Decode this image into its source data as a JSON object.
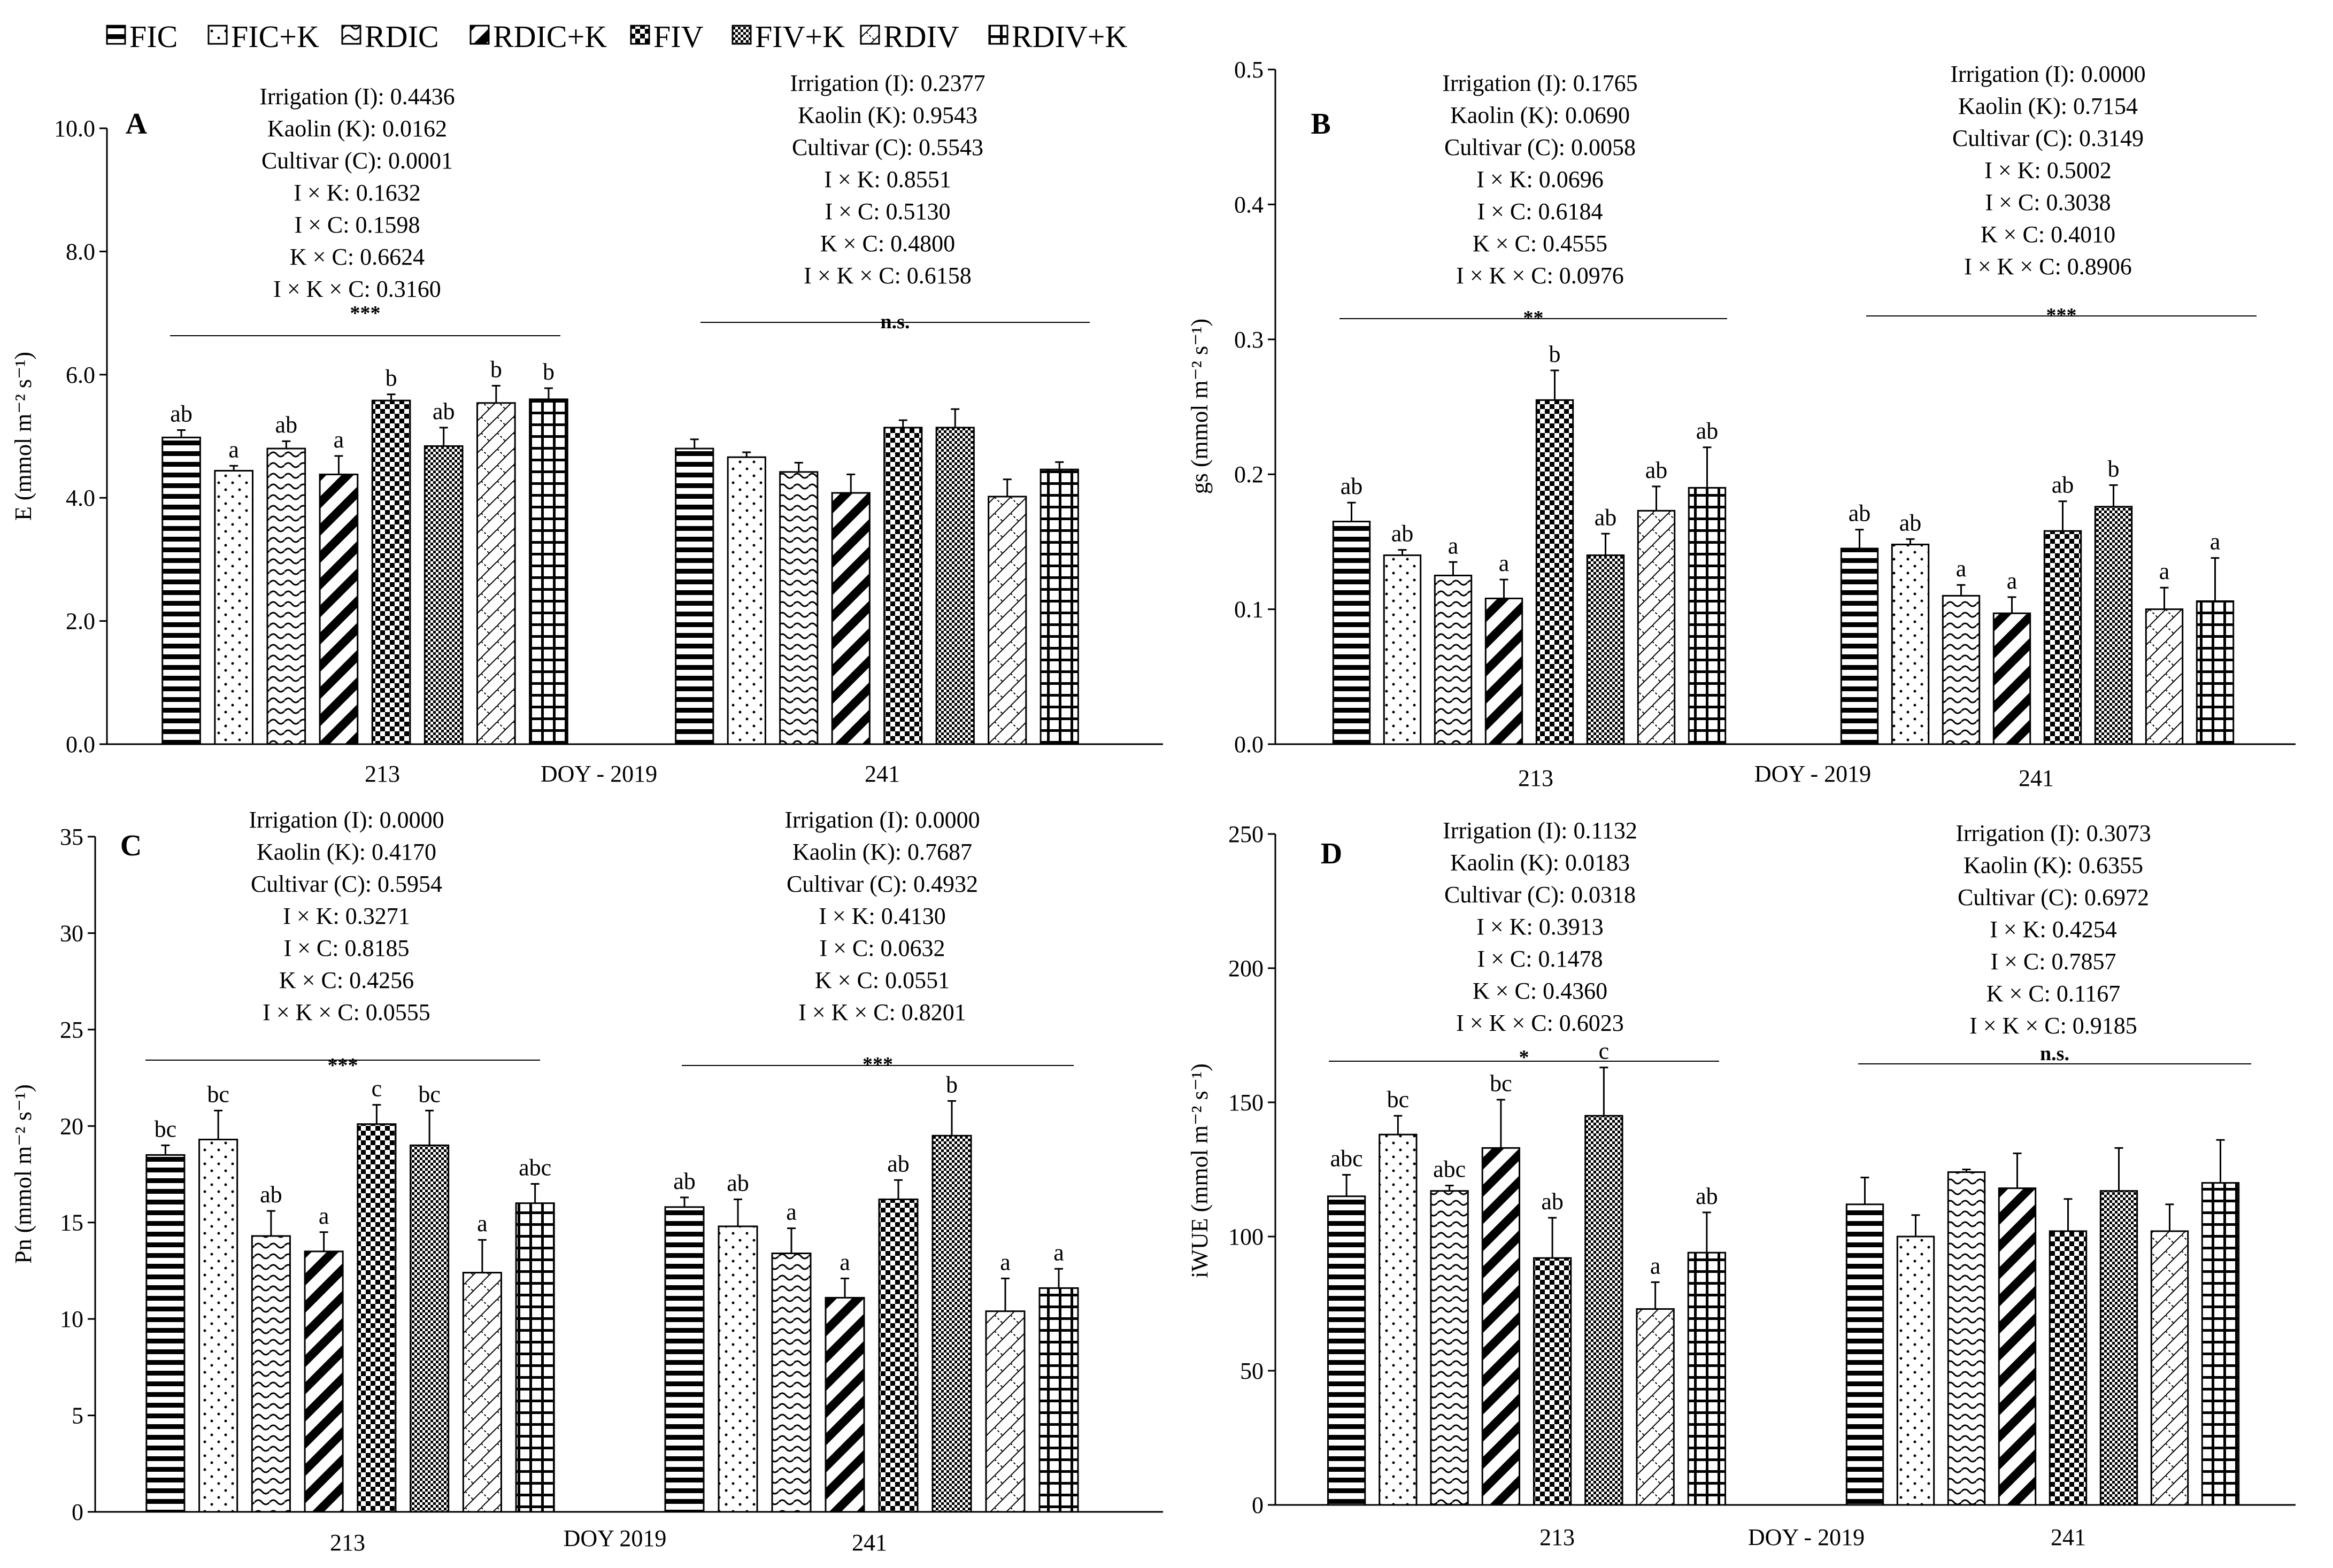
{
  "legend": [
    {
      "key": "FIC",
      "label": "FIC"
    },
    {
      "key": "FICK",
      "label": "FIC+K"
    },
    {
      "key": "RDIC",
      "label": "RDIC"
    },
    {
      "key": "RDICK",
      "label": "RDIC+K"
    },
    {
      "key": "FIV",
      "label": "FIV"
    },
    {
      "key": "FIVK",
      "label": "FIV+K"
    },
    {
      "key": "RDIV",
      "label": "RDIV"
    },
    {
      "key": "RDIVK",
      "label": "RDIV+K"
    }
  ],
  "colors": {
    "bar_fill": "#ffffff",
    "ink": "#000000",
    "error_bar": "#000000"
  },
  "chart_data": [
    {
      "type": "bar",
      "panel": "A",
      "ylabel": "E (mmol m⁻² s⁻¹)",
      "xlabel": "DOY - 2019",
      "ylim": [
        0,
        10
      ],
      "yticks": [
        "0.0",
        "2.0",
        "4.0",
        "6.0",
        "8.0",
        "10.0"
      ],
      "categories": [
        "213",
        "241"
      ],
      "values": [
        [
          4.98,
          4.44,
          4.8,
          4.38,
          5.58,
          4.84,
          5.54,
          5.6
        ],
        [
          4.8,
          4.66,
          4.42,
          4.08,
          5.14,
          5.14,
          4.02,
          4.46
        ]
      ],
      "errors": [
        [
          0.12,
          0.08,
          0.12,
          0.3,
          0.1,
          0.3,
          0.28,
          0.18
        ],
        [
          0.15,
          0.08,
          0.15,
          0.3,
          0.12,
          0.3,
          0.28,
          0.12
        ]
      ],
      "letters": [
        [
          "ab",
          "a",
          "ab",
          "a",
          "b",
          "ab",
          "b",
          "b"
        ],
        [
          "",
          "",
          "",
          "",
          "",
          "",
          "",
          ""
        ]
      ],
      "stats": [
        [
          "Irrigation (I): 0.4436",
          "Kaolin (K): 0.0162",
          "Cultivar (C): 0.0001",
          "I × K: 0.1632",
          "I  × C: 0.1598",
          "K × C: 0.6624",
          "I × K × C: 0.3160"
        ],
        [
          "Irrigation (I): 0.2377",
          "Kaolin (K): 0.9543",
          "Cultivar (C): 0.5543",
          "I × K: 0.8551",
          "I  × C: 0.5130",
          "K × C: 0.4800",
          "I × K × C: 0.6158"
        ]
      ],
      "significance": [
        "***",
        "n.s."
      ]
    },
    {
      "type": "bar",
      "panel": "B",
      "ylabel": "gs (mmol m⁻² s⁻¹)",
      "xlabel": "DOY - 2019",
      "ylim": [
        0,
        0.5
      ],
      "yticks": [
        "0.0",
        "0.1",
        "0.2",
        "0.3",
        "0.4",
        "0.5"
      ],
      "categories": [
        "213",
        "241"
      ],
      "values": [
        [
          0.165,
          0.14,
          0.125,
          0.108,
          0.255,
          0.14,
          0.173,
          0.19
        ],
        [
          0.145,
          0.148,
          0.11,
          0.097,
          0.158,
          0.176,
          0.1,
          0.106
        ]
      ],
      "errors": [
        [
          0.014,
          0.004,
          0.01,
          0.014,
          0.022,
          0.016,
          0.018,
          0.03
        ],
        [
          0.014,
          0.004,
          0.008,
          0.012,
          0.022,
          0.016,
          0.016,
          0.032
        ]
      ],
      "letters": [
        [
          "ab",
          "ab",
          "a",
          "a",
          "b",
          "ab",
          "ab",
          "ab"
        ],
        [
          "ab",
          "ab",
          "a",
          "a",
          "ab",
          "b",
          "a",
          "a"
        ]
      ],
      "stats": [
        [
          "Irrigation (I): 0.1765",
          "Kaolin (K): 0.0690",
          "Cultivar (C): 0.0058",
          "I × K: 0.0696",
          "I  × C: 0.6184",
          "K × C: 0.4555",
          "I × K × C: 0.0976"
        ],
        [
          "Irrigation (I): 0.0000",
          "Kaolin (K): 0.7154",
          "Cultivar (C): 0.3149",
          "I × K: 0.5002",
          "I × C: 0.3038",
          "K × C: 0.4010",
          "I × K × C: 0.8906"
        ]
      ],
      "significance": [
        "**",
        "***"
      ]
    },
    {
      "type": "bar",
      "panel": "C",
      "ylabel": "Pn (mmol m⁻² s⁻¹)",
      "xlabel": "DOY  2019",
      "ylim": [
        0,
        35
      ],
      "yticks": [
        "0",
        "5",
        "10",
        "15",
        "20",
        "25",
        "30",
        "35"
      ],
      "categories": [
        "213",
        "241"
      ],
      "values": [
        [
          18.5,
          19.3,
          14.3,
          13.5,
          20.1,
          19.0,
          12.4,
          16.0
        ],
        [
          15.8,
          14.8,
          13.4,
          11.1,
          16.2,
          19.5,
          10.4,
          11.6
        ]
      ],
      "errors": [
        [
          0.5,
          1.5,
          1.3,
          1.0,
          1.0,
          1.8,
          1.7,
          1.0
        ],
        [
          0.5,
          1.4,
          1.3,
          1.0,
          1.0,
          1.8,
          1.7,
          1.0
        ]
      ],
      "letters": [
        [
          "bc",
          "bc",
          "ab",
          "a",
          "c",
          "bc",
          "a",
          "abc"
        ],
        [
          "ab",
          "ab",
          "a",
          "a",
          "ab",
          "b",
          "a",
          "a"
        ]
      ],
      "stats": [
        [
          "Irrigation (I): 0.0000",
          "Kaolin (K): 0.4170",
          "Cultivar (C): 0.5954",
          "I × K: 0.3271",
          "I × C: 0.8185",
          "K × C: 0.4256",
          "I × K × C: 0.0555"
        ],
        [
          "Irrigation (I): 0.0000",
          "Kaolin (K): 0.7687",
          "Cultivar (C): 0.4932",
          "I × K: 0.4130",
          "I × C: 0.0632",
          "K × C: 0.0551",
          "I × K × C: 0.8201"
        ]
      ],
      "significance": [
        "***",
        "***"
      ]
    },
    {
      "type": "bar",
      "panel": "D",
      "ylabel": "iWUE  (mmol m⁻² s⁻¹)",
      "xlabel": "DOY - 2019",
      "ylim": [
        0,
        250
      ],
      "yticks": [
        "0",
        "50",
        "100",
        "150",
        "200",
        "250"
      ],
      "categories": [
        "213",
        "241"
      ],
      "values": [
        [
          115,
          138,
          117,
          133,
          92,
          145,
          73,
          94
        ],
        [
          112,
          100,
          124,
          118,
          102,
          117,
          102,
          120
        ]
      ],
      "errors": [
        [
          8,
          7,
          2,
          18,
          15,
          18,
          10,
          15
        ],
        [
          10,
          8,
          1,
          13,
          12,
          16,
          10,
          16
        ]
      ],
      "letters": [
        [
          "abc",
          "bc",
          "abc",
          "bc",
          "ab",
          "c",
          "a",
          "ab"
        ],
        [
          "",
          "",
          "",
          "",
          "",
          "",
          "",
          ""
        ]
      ],
      "stats": [
        [
          "Irrigation (I): 0.1132",
          "Kaolin (K): 0.0183",
          "Cultivar (C): 0.0318",
          "I × K: 0.3913",
          "I × C: 0.1478",
          "K × C: 0.4360",
          "I × K × C: 0.6023"
        ],
        [
          "Irrigation (I): 0.3073",
          "Kaolin (K): 0.6355",
          "Cultivar (C): 0.6972",
          "I × K: 0.4254",
          "I × C: 0.7857",
          "K × C: 0.1167",
          "I × K × C: 0.9185"
        ]
      ],
      "significance": [
        "*",
        "n.s."
      ]
    }
  ]
}
